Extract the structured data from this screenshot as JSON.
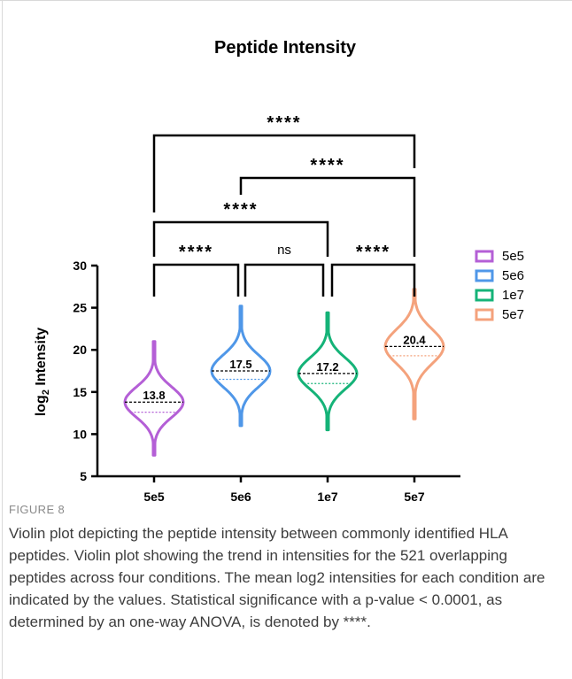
{
  "chart_data": {
    "type": "violin",
    "title": "Peptide Intensity",
    "ylabel_main": "log",
    "ylabel_sub": "2",
    "ylabel_rest": " Intensity",
    "xlabel": "",
    "ylim": [
      5,
      30
    ],
    "yticks": [
      "5",
      "10",
      "15",
      "20",
      "25",
      "30"
    ],
    "categories": [
      "5e5",
      "5e6",
      "1e7",
      "5e7"
    ],
    "means": [
      13.8,
      17.5,
      17.2,
      20.4
    ],
    "mean_labels": [
      "13.8",
      "17.5",
      "17.2",
      "20.4"
    ],
    "ranges": [
      [
        7.5,
        21
      ],
      [
        11,
        25.2
      ],
      [
        10.5,
        24.4
      ],
      [
        11.8,
        27.2
      ]
    ],
    "medians": [
      12.6,
      16.5,
      16.0,
      19.3
    ],
    "colors": [
      "#b45fd6",
      "#4f97e8",
      "#15b378",
      "#f4a27c"
    ],
    "legend": {
      "position": "right",
      "items": [
        "5e5",
        "5e6",
        "1e7",
        "5e7"
      ]
    },
    "significance": [
      {
        "from": "5e5",
        "to": "5e6",
        "label": "****"
      },
      {
        "from": "5e6",
        "to": "1e7",
        "label": "ns"
      },
      {
        "from": "1e7",
        "to": "5e7",
        "label": "****"
      },
      {
        "from": "5e5",
        "to": "1e7",
        "label": "****"
      },
      {
        "from": "5e6",
        "to": "5e7",
        "label": "****"
      },
      {
        "from": "5e5",
        "to": "5e7",
        "label": "****"
      }
    ]
  },
  "caption": {
    "label": "FIGURE 8",
    "text": "Violin plot depicting the peptide intensity between commonly identified HLA peptides. Violin plot showing the trend in intensities for the 521 overlapping peptides across four conditions. The mean log2 intensities for each condition are indicated by the values. Statistical significance with a p-value < 0.0001, as determined by an one-way ANOVA, is denoted by ****."
  }
}
